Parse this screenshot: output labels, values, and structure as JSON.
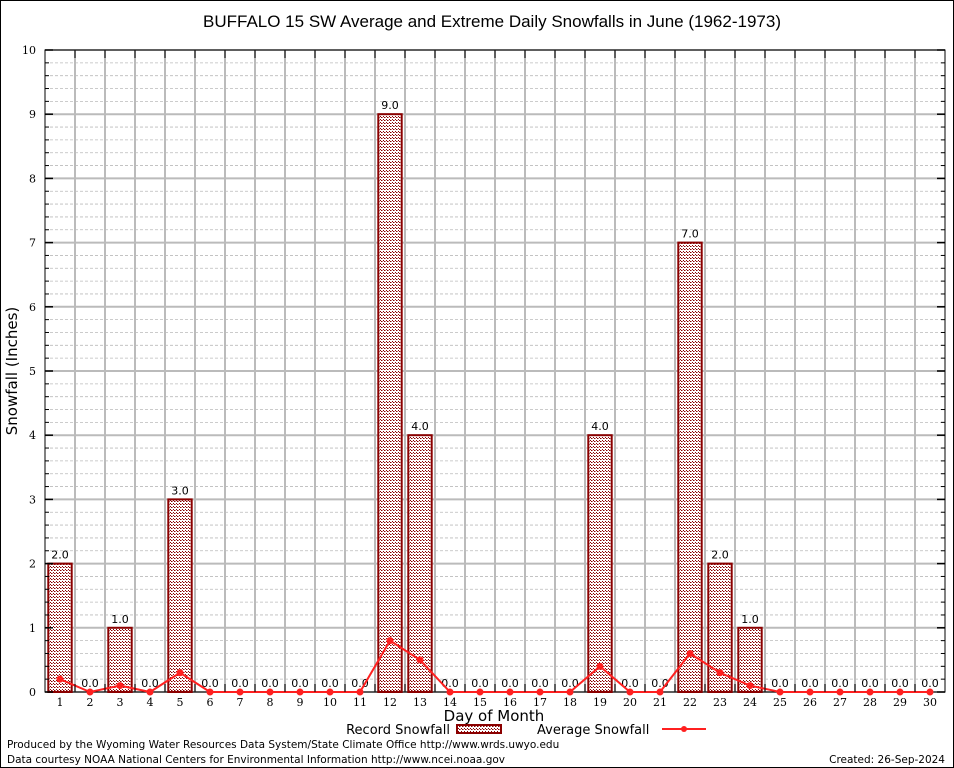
{
  "chart_data": {
    "type": "bar",
    "title": "BUFFALO 15 SW Average and Extreme Daily Snowfalls in June (1962-1973)",
    "xlabel": "Day of Month",
    "ylabel": "Snowfall (Inches)",
    "ylim": [
      0,
      10
    ],
    "yticks": [
      "0",
      "1",
      "2",
      "3",
      "4",
      "5",
      "6",
      "7",
      "8",
      "9",
      "10"
    ],
    "categories": [
      "1",
      "2",
      "3",
      "4",
      "5",
      "6",
      "7",
      "8",
      "9",
      "10",
      "11",
      "12",
      "13",
      "14",
      "15",
      "16",
      "17",
      "18",
      "19",
      "20",
      "21",
      "22",
      "23",
      "24",
      "25",
      "26",
      "27",
      "28",
      "29",
      "30"
    ],
    "grid": true,
    "series": [
      {
        "name": "Record Snowfall",
        "type": "bar",
        "color": "#8b0000",
        "values": [
          2.0,
          0.0,
          1.0,
          0.0,
          3.0,
          0.0,
          0.0,
          0.0,
          0.0,
          0.0,
          0.0,
          9.0,
          4.0,
          0.0,
          0.0,
          0.0,
          0.0,
          0.0,
          4.0,
          0.0,
          0.0,
          7.0,
          2.0,
          1.0,
          0.0,
          0.0,
          0.0,
          0.0,
          0.0,
          0.0
        ],
        "labels": [
          "2.0",
          "0.0",
          "1.0",
          "0.0",
          "3.0",
          "0.0",
          "0.0",
          "0.0",
          "0.0",
          "0.0",
          "0.0",
          "9.0",
          "4.0",
          "0.0",
          "0.0",
          "0.0",
          "0.0",
          "0.0",
          "4.0",
          "0.0",
          "0.0",
          "7.0",
          "2.0",
          "1.0",
          "0.0",
          "0.0",
          "0.0",
          "0.0",
          "0.0",
          "0.0"
        ]
      },
      {
        "name": "Average Snowfall",
        "type": "line",
        "color": "#ff2020",
        "values": [
          0.2,
          0.0,
          0.1,
          0.0,
          0.3,
          0.0,
          0.0,
          0.0,
          0.0,
          0.0,
          0.0,
          0.8,
          0.5,
          0.0,
          0.0,
          0.0,
          0.0,
          0.0,
          0.4,
          0.0,
          0.0,
          0.6,
          0.3,
          0.1,
          0.0,
          0.0,
          0.0,
          0.0,
          0.0,
          0.0
        ]
      }
    ],
    "legend": "bottom-center"
  },
  "footer": {
    "produced": "Produced by the Wyoming Water Resources Data System/State Climate Office http://www.wrds.uwyo.edu",
    "courtesy": "Data courtesy NOAA National Centers for Environmental Information http://www.ncei.noaa.gov",
    "created": "Created: 26-Sep-2024"
  }
}
